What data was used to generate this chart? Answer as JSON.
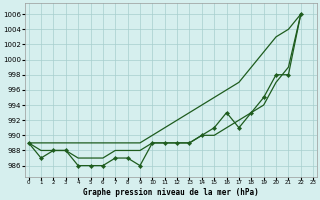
{
  "xlabel": "Graphe pression niveau de la mer (hPa)",
  "xlim": [
    -0.3,
    23.3
  ],
  "ylim": [
    984.5,
    1007.5
  ],
  "yticks": [
    986,
    988,
    990,
    992,
    994,
    996,
    998,
    1000,
    1002,
    1004,
    1006
  ],
  "xticks": [
    0,
    1,
    2,
    3,
    4,
    5,
    6,
    7,
    8,
    9,
    10,
    11,
    12,
    13,
    14,
    15,
    16,
    17,
    18,
    19,
    20,
    21,
    22,
    23
  ],
  "background_color": "#d6efee",
  "grid_color": "#a8cece",
  "line_color": "#1e5c1e",
  "marker_line": [
    989,
    987,
    988,
    988,
    986,
    986,
    986,
    987,
    987,
    986,
    989,
    989,
    989,
    989,
    990,
    991,
    993,
    991,
    993,
    995,
    998,
    998,
    1006
  ],
  "smooth_upper": [
    989,
    989,
    989,
    989,
    989,
    989,
    989,
    989,
    989,
    989,
    990,
    991,
    992,
    993,
    994,
    995,
    996,
    997,
    999,
    1001,
    1003,
    1004,
    1006
  ],
  "smooth_lower": [
    989,
    988,
    988,
    988,
    987,
    987,
    987,
    988,
    988,
    988,
    989,
    989,
    989,
    989,
    990,
    990,
    991,
    992,
    993,
    994,
    997,
    999,
    1006
  ]
}
